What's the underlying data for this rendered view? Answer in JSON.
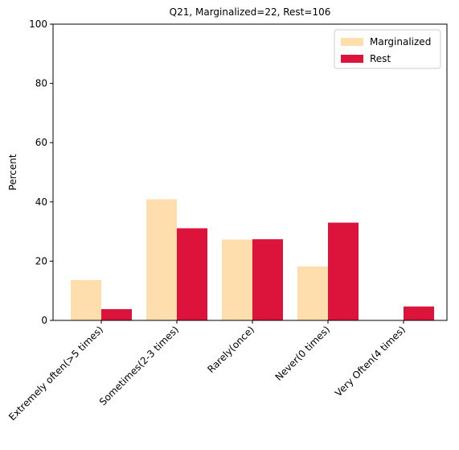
{
  "chart_data": {
    "type": "bar",
    "title": "Q21, Marginalized=22, Rest=106",
    "xlabel": "",
    "ylabel": "Percent",
    "ylim": [
      0,
      100
    ],
    "yticks": [
      0,
      20,
      40,
      60,
      80,
      100
    ],
    "grid": false,
    "legend_position": "top-right",
    "categories": [
      "Extremely often(>5 times)",
      "Sometimes(2-3 times)",
      "Rarely(once)",
      "Never(0 times)",
      "Very Often(4 times)"
    ],
    "series": [
      {
        "name": "Marginalized",
        "color": "#ffdead",
        "values": [
          13.6,
          40.9,
          27.3,
          18.2,
          0
        ]
      },
      {
        "name": "Rest",
        "color": "#dc143c",
        "values": [
          3.8,
          31.1,
          27.4,
          33.0,
          4.7
        ]
      }
    ]
  }
}
